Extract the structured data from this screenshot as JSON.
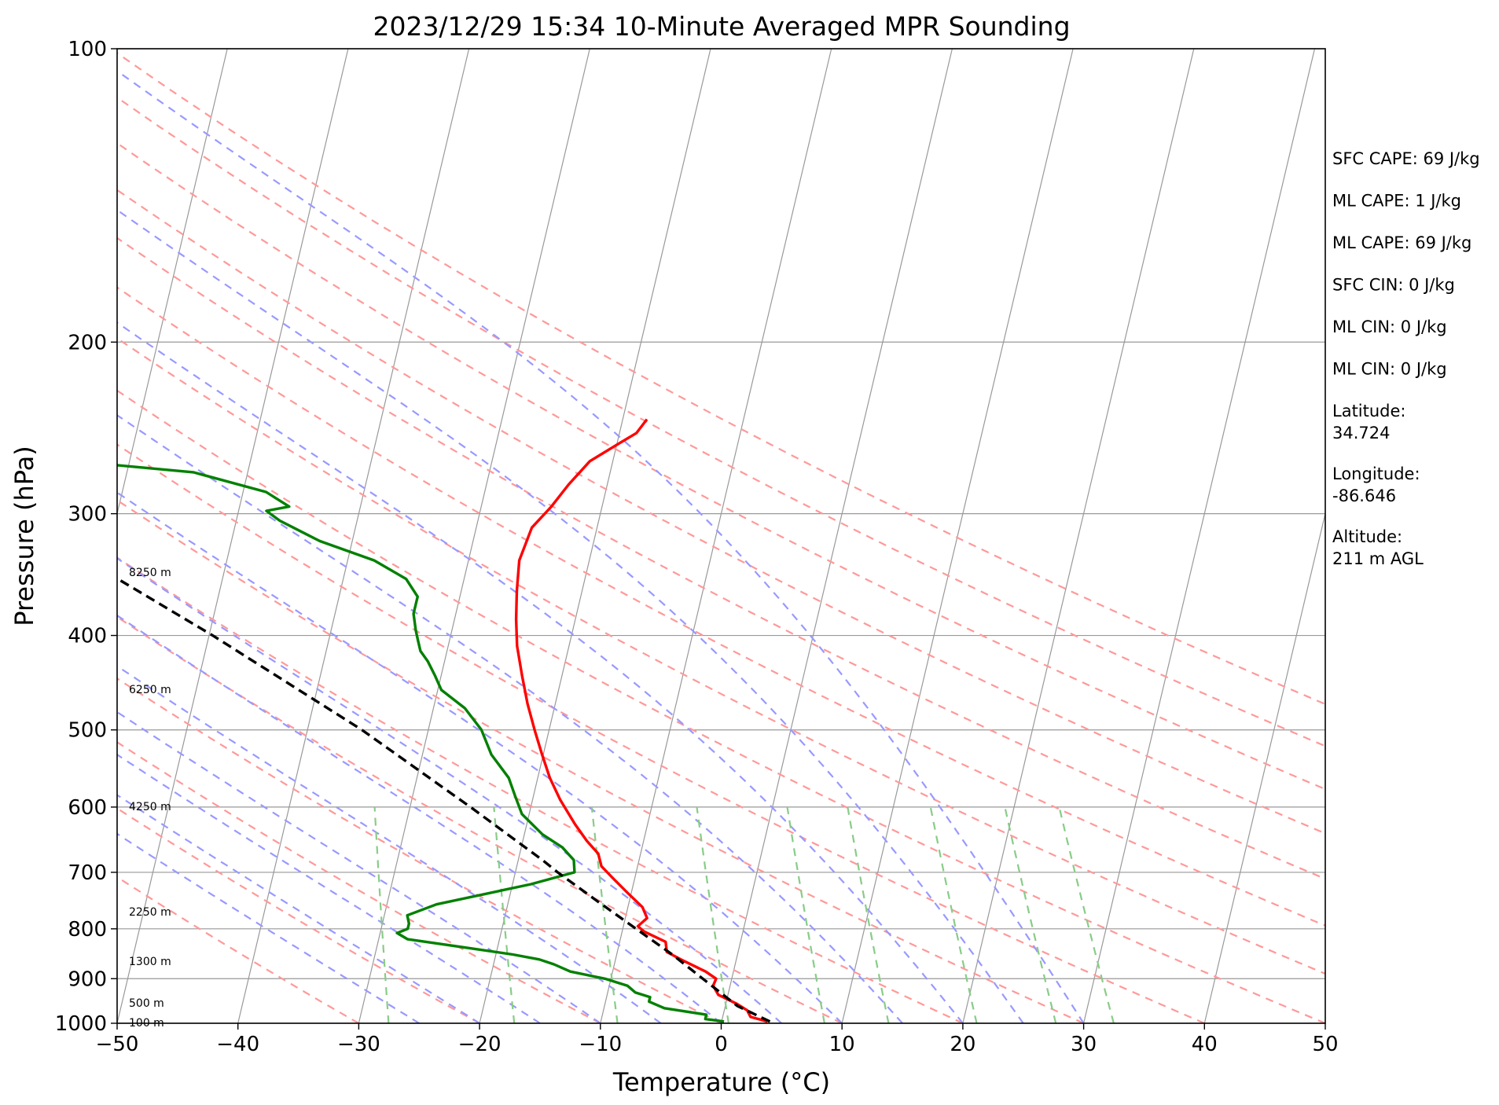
{
  "chart_data": {
    "type": "line",
    "title": "2023/12/29 15:34 10-Minute Averaged MPR Sounding",
    "xlabel": "Temperature (°C)",
    "ylabel": "Pressure (hPa)",
    "xlim": [
      -50,
      50
    ],
    "ylim": [
      1000,
      100
    ],
    "y_scale": "log",
    "skew": true,
    "grid": true,
    "x_ticks": [
      "−50",
      "−40",
      "−30",
      "−20",
      "−10",
      "0",
      "10",
      "20",
      "30",
      "40",
      "50"
    ],
    "y_ticks": [
      "100",
      "200",
      "300",
      "400",
      "500",
      "600",
      "700",
      "800",
      "900",
      "1000"
    ],
    "height_labels": [
      {
        "p": 1000,
        "label": "100 m"
      },
      {
        "p": 955,
        "label": "500 m"
      },
      {
        "p": 865,
        "label": "1300 m"
      },
      {
        "p": 770,
        "label": "2250 m"
      },
      {
        "p": 600,
        "label": "4250 m"
      },
      {
        "p": 455,
        "label": "6250 m"
      },
      {
        "p": 345,
        "label": "8250 m"
      }
    ],
    "series": [
      {
        "color": "#ff0000",
        "points": [
          [
            996,
            3.8
          ],
          [
            985,
            2.3
          ],
          [
            970,
            1.9
          ],
          [
            955,
            0.9
          ],
          [
            935,
            -0.8
          ],
          [
            915,
            -1.4
          ],
          [
            900,
            -1.3
          ],
          [
            885,
            -2.3
          ],
          [
            860,
            -4.6
          ],
          [
            845,
            -5.9
          ],
          [
            825,
            -6.2
          ],
          [
            805,
            -8.2
          ],
          [
            795,
            -8.8
          ],
          [
            780,
            -8.2
          ],
          [
            760,
            -8.8
          ],
          [
            735,
            -10.3
          ],
          [
            710,
            -11.8
          ],
          [
            690,
            -13.0
          ],
          [
            670,
            -13.5
          ],
          [
            650,
            -14.7
          ],
          [
            625,
            -16.0
          ],
          [
            590,
            -17.7
          ],
          [
            560,
            -19.0
          ],
          [
            530,
            -20.1
          ],
          [
            500,
            -21.2
          ],
          [
            470,
            -22.3
          ],
          [
            440,
            -23.3
          ],
          [
            410,
            -24.3
          ],
          [
            385,
            -24.9
          ],
          [
            360,
            -25.4
          ],
          [
            335,
            -25.8
          ],
          [
            310,
            -25.4
          ],
          [
            295,
            -24.2
          ],
          [
            280,
            -23.2
          ],
          [
            265,
            -21.9
          ],
          [
            255,
            -20.0
          ],
          [
            248,
            -18.6
          ],
          [
            240,
            -18.0
          ]
        ]
      },
      {
        "color": "#008000",
        "points": [
          [
            996,
            0.2
          ],
          [
            990,
            -1.4
          ],
          [
            980,
            -1.4
          ],
          [
            965,
            -5.0
          ],
          [
            950,
            -6.4
          ],
          [
            940,
            -6.4
          ],
          [
            930,
            -7.7
          ],
          [
            915,
            -8.5
          ],
          [
            900,
            -10.5
          ],
          [
            885,
            -13.5
          ],
          [
            870,
            -15.0
          ],
          [
            860,
            -16.3
          ],
          [
            850,
            -18.6
          ],
          [
            835,
            -23.0
          ],
          [
            820,
            -27.6
          ],
          [
            808,
            -28.6
          ],
          [
            800,
            -27.8
          ],
          [
            790,
            -27.8
          ],
          [
            775,
            -28.1
          ],
          [
            755,
            -25.9
          ],
          [
            720,
            -18.5
          ],
          [
            700,
            -15.1
          ],
          [
            680,
            -15.4
          ],
          [
            660,
            -16.6
          ],
          [
            640,
            -18.5
          ],
          [
            610,
            -20.6
          ],
          [
            585,
            -21.5
          ],
          [
            560,
            -22.4
          ],
          [
            530,
            -24.3
          ],
          [
            500,
            -25.6
          ],
          [
            475,
            -27.4
          ],
          [
            455,
            -29.7
          ],
          [
            440,
            -30.5
          ],
          [
            425,
            -31.4
          ],
          [
            415,
            -32.2
          ],
          [
            405,
            -32.6
          ],
          [
            395,
            -33.0
          ],
          [
            380,
            -33.5
          ],
          [
            370,
            -33.5
          ],
          [
            365,
            -33.5
          ],
          [
            350,
            -34.8
          ],
          [
            335,
            -37.8
          ],
          [
            320,
            -42.7
          ],
          [
            305,
            -46.4
          ],
          [
            298,
            -47.7
          ],
          [
            295,
            -45.9
          ],
          [
            285,
            -48.1
          ],
          [
            272,
            -54.5
          ],
          [
            262,
            -69.1
          ],
          [
            258,
            -78.9
          ]
        ]
      },
      {
        "color": "#000000",
        "dashed": true,
        "points": [
          [
            996,
            4.0
          ],
          [
            960,
            1.0
          ],
          [
            900,
            -2.4
          ],
          [
            850,
            -5.4
          ],
          [
            800,
            -8.9
          ],
          [
            750,
            -12.6
          ],
          [
            700,
            -16.5
          ],
          [
            680,
            -18.0
          ],
          [
            600,
            -25.0
          ],
          [
            500,
            -35.5
          ],
          [
            400,
            -49.7
          ],
          [
            300,
            -69.0
          ],
          [
            250,
            -81.5
          ]
        ]
      }
    ],
    "background_lines": {
      "dry_adiabats_color": "#ff9999",
      "moist_adiabats_color": "#9999ff",
      "mixing_ratio_color": "#88cc88",
      "isotherm_color": "#999999"
    }
  },
  "annotations": [
    {
      "id": "sfc-cape",
      "text": "SFC CAPE: 69 J/kg"
    },
    {
      "id": "ml-cape-1",
      "text": "ML CAPE: 1 J/kg"
    },
    {
      "id": "ml-cape-2",
      "text": "ML CAPE: 69 J/kg"
    },
    {
      "id": "sfc-cin",
      "text": "SFC CIN: 0 J/kg"
    },
    {
      "id": "ml-cin-1",
      "text": "ML CIN: 0 J/kg"
    },
    {
      "id": "ml-cin-2",
      "text": "ML CIN: 0 J/kg"
    },
    {
      "id": "latitude",
      "lines": [
        "Latitude:",
        "34.724"
      ]
    },
    {
      "id": "longitude",
      "lines": [
        "Longitude:",
        "-86.646"
      ]
    },
    {
      "id": "altitude",
      "lines": [
        "Altitude:",
        "211 m AGL"
      ]
    }
  ]
}
